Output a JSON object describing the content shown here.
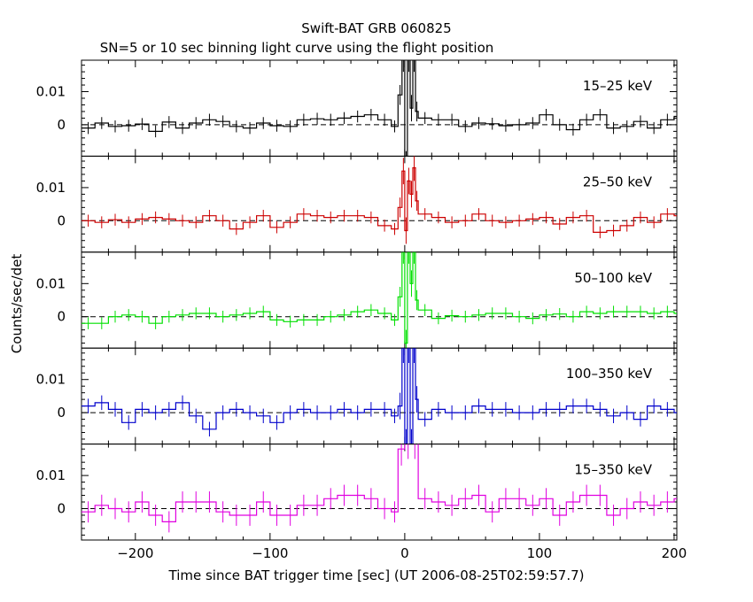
{
  "chart_data": {
    "type": "line",
    "title": "Swift-BAT GRB 060825",
    "subtitle": "SN=5 or 10 sec binning light curve using the flight position",
    "xlabel": "Time since BAT trigger time [sec] (UT 2006-08-25T02:59:57.7)",
    "ylabel": "Counts/sec/det",
    "xlim": [
      -240,
      202
    ],
    "x_ticks": [
      -200,
      -100,
      0,
      100,
      200
    ],
    "x_tick_labels": [
      "−200",
      "−100",
      "0",
      "100",
      "200"
    ],
    "ylim": [
      -0.0095,
      0.0195
    ],
    "y_ticks": [
      0,
      0.01
    ],
    "y_tick_labels": [
      "0",
      "0.01"
    ],
    "reference_line": 0,
    "panels": [
      {
        "name": "15–25 keV",
        "color": "#000000",
        "bins_x": [
          -240,
          -230,
          -220,
          -210,
          -200,
          -190,
          -180,
          -170,
          -160,
          -150,
          -140,
          -130,
          -120,
          -110,
          -100,
          -90,
          -80,
          -70,
          -60,
          -50,
          -40,
          -30,
          -20,
          -10,
          -5,
          -2,
          0,
          2,
          4,
          6,
          8,
          10,
          20,
          30,
          40,
          50,
          60,
          70,
          80,
          90,
          100,
          110,
          120,
          130,
          140,
          150,
          160,
          170,
          180,
          190,
          200
        ],
        "values": [
          -0.001,
          0.0005,
          -0.0005,
          -0.0003,
          0.0002,
          -0.002,
          0.0008,
          -0.001,
          0.0005,
          0.0015,
          0.001,
          -0.0005,
          -0.001,
          0.0005,
          -0.0003,
          -0.0005,
          0.0015,
          0.0018,
          0.0015,
          0.002,
          0.0025,
          0.003,
          0.0015,
          -0.0005,
          0.009,
          0.02,
          -0.012,
          0.02,
          0.005,
          0.02,
          0.004,
          0.002,
          0.0015,
          0.0015,
          -0.0005,
          0.0005,
          0.0003,
          -0.0003,
          0,
          0.0005,
          0.003,
          0,
          -0.0015,
          0.0015,
          0.003,
          -0.001,
          -0.0005,
          0.001,
          -0.001,
          0.0015,
          0.0025
        ],
        "errors": [
          0.0018,
          0.0018,
          0.0018,
          0.0018,
          0.0018,
          0.0018,
          0.0018,
          0.0018,
          0.0018,
          0.0018,
          0.0018,
          0.0018,
          0.0018,
          0.0018,
          0.0018,
          0.0018,
          0.0018,
          0.0018,
          0.0018,
          0.0018,
          0.0018,
          0.0018,
          0.0018,
          0.0018,
          0.003,
          0.004,
          0.004,
          0.004,
          0.004,
          0.004,
          0.003,
          0.0018,
          0.0018,
          0.0018,
          0.0018,
          0.0018,
          0.0018,
          0.0018,
          0.0018,
          0.0018,
          0.0018,
          0.0018,
          0.0018,
          0.0018,
          0.0018,
          0.0018,
          0.0018,
          0.0018,
          0.0018,
          0.0018,
          0.0018
        ]
      },
      {
        "name": "25–50 keV",
        "color": "#cc0000",
        "bins_x": [
          -240,
          -230,
          -220,
          -210,
          -200,
          -190,
          -180,
          -170,
          -160,
          -150,
          -140,
          -130,
          -120,
          -110,
          -100,
          -90,
          -80,
          -70,
          -60,
          -50,
          -40,
          -30,
          -20,
          -10,
          -5,
          -2,
          0,
          2,
          4,
          6,
          8,
          10,
          20,
          30,
          40,
          50,
          60,
          70,
          80,
          90,
          100,
          110,
          120,
          130,
          140,
          150,
          160,
          170,
          180,
          190,
          200
        ],
        "values": [
          0,
          -0.0005,
          0.0003,
          -0.0005,
          0.0005,
          0.001,
          0.0005,
          0,
          -0.0005,
          0.0015,
          0,
          -0.0025,
          -0.0005,
          0.0015,
          -0.002,
          -0.0005,
          0.002,
          0.0015,
          0.001,
          0.0015,
          0.0015,
          0.001,
          -0.0015,
          -0.0025,
          0.004,
          0.015,
          -0.003,
          0.012,
          0.008,
          0.016,
          0.006,
          0.002,
          0.001,
          -0.0005,
          0,
          0.002,
          0,
          -0.0005,
          0,
          0.0005,
          0.001,
          -0.001,
          0.001,
          0.0015,
          -0.0035,
          -0.003,
          -0.0015,
          0.001,
          -0.0005,
          0.002,
          0.0015
        ],
        "errors": [
          0.0018,
          0.0018,
          0.0018,
          0.0018,
          0.0018,
          0.0018,
          0.0018,
          0.0018,
          0.0018,
          0.0018,
          0.0018,
          0.0018,
          0.0018,
          0.0018,
          0.0018,
          0.0018,
          0.0018,
          0.0018,
          0.0018,
          0.0018,
          0.0018,
          0.0018,
          0.0018,
          0.0018,
          0.003,
          0.004,
          0.004,
          0.004,
          0.004,
          0.004,
          0.003,
          0.0018,
          0.0018,
          0.0018,
          0.0018,
          0.0018,
          0.0018,
          0.0018,
          0.0018,
          0.0018,
          0.0018,
          0.0018,
          0.0018,
          0.0018,
          0.0018,
          0.0018,
          0.0018,
          0.0018,
          0.0018,
          0.0018,
          0.0018
        ]
      },
      {
        "name": "50–100 keV",
        "color": "#00e000",
        "bins_x": [
          -240,
          -230,
          -220,
          -210,
          -200,
          -190,
          -180,
          -170,
          -160,
          -150,
          -140,
          -130,
          -120,
          -110,
          -100,
          -90,
          -80,
          -70,
          -60,
          -50,
          -40,
          -30,
          -20,
          -10,
          -5,
          -2,
          0,
          2,
          4,
          6,
          8,
          10,
          20,
          30,
          40,
          50,
          60,
          70,
          80,
          90,
          100,
          110,
          120,
          130,
          140,
          150,
          160,
          170,
          180,
          190,
          200
        ],
        "values": [
          -0.002,
          -0.002,
          0,
          0.0005,
          0,
          -0.002,
          0,
          0.0005,
          0.001,
          0.001,
          0,
          0.0005,
          0.001,
          0.0015,
          -0.001,
          -0.0015,
          -0.001,
          -0.001,
          0,
          0.0005,
          0.0015,
          0.002,
          0.001,
          -0.001,
          0.006,
          0.02,
          -0.008,
          0.02,
          0.01,
          0.02,
          0.005,
          0.002,
          -0.0005,
          0.0003,
          0,
          0.0005,
          0.001,
          0.001,
          0,
          -0.0005,
          0.0005,
          0.0008,
          0,
          0.0015,
          0.001,
          0.0015,
          0.0015,
          0.0015,
          0.001,
          0.0015,
          0.001
        ],
        "errors": [
          0.0018,
          0.0018,
          0.0018,
          0.0018,
          0.0018,
          0.0018,
          0.0018,
          0.0018,
          0.0018,
          0.0018,
          0.0018,
          0.0018,
          0.0018,
          0.0018,
          0.0018,
          0.0018,
          0.0018,
          0.0018,
          0.0018,
          0.0018,
          0.0018,
          0.0018,
          0.0018,
          0.0018,
          0.003,
          0.004,
          0.004,
          0.004,
          0.004,
          0.004,
          0.003,
          0.0018,
          0.0018,
          0.0018,
          0.0018,
          0.0018,
          0.0018,
          0.0018,
          0.0018,
          0.0018,
          0.0018,
          0.0018,
          0.0018,
          0.0018,
          0.0018,
          0.0018,
          0.0018,
          0.0018,
          0.0018,
          0.0018,
          0.0018
        ]
      },
      {
        "name": "100–350 keV",
        "color": "#0000cc",
        "bins_x": [
          -240,
          -230,
          -220,
          -210,
          -200,
          -190,
          -180,
          -170,
          -160,
          -150,
          -140,
          -130,
          -120,
          -110,
          -100,
          -90,
          -80,
          -70,
          -60,
          -50,
          -40,
          -30,
          -20,
          -10,
          -5,
          -2,
          0,
          2,
          4,
          6,
          8,
          10,
          20,
          30,
          40,
          50,
          60,
          70,
          80,
          90,
          100,
          110,
          120,
          130,
          140,
          150,
          160,
          170,
          180,
          190,
          200
        ],
        "values": [
          0.002,
          0.003,
          0.001,
          -0.003,
          0.001,
          0,
          0.001,
          0.003,
          -0.001,
          -0.005,
          0,
          0.001,
          0,
          -0.001,
          -0.003,
          0,
          0.001,
          0,
          0,
          0.001,
          0,
          0.001,
          0.001,
          -0.001,
          0.002,
          0.02,
          -0.01,
          0.02,
          -0.01,
          0.02,
          0.004,
          -0.002,
          0.001,
          0,
          0,
          0.002,
          0.001,
          0.001,
          0,
          0,
          0.001,
          0.001,
          0.002,
          0.002,
          0.001,
          -0.001,
          0,
          -0.002,
          0.002,
          0.001,
          0
        ],
        "errors": [
          0.0022,
          0.0022,
          0.0022,
          0.0022,
          0.0022,
          0.0022,
          0.0022,
          0.0022,
          0.0022,
          0.0022,
          0.0022,
          0.0022,
          0.0022,
          0.0022,
          0.0022,
          0.0022,
          0.0022,
          0.0022,
          0.0022,
          0.0022,
          0.0022,
          0.0022,
          0.0022,
          0.0022,
          0.004,
          0.005,
          0.005,
          0.005,
          0.005,
          0.005,
          0.004,
          0.0022,
          0.0022,
          0.0022,
          0.0022,
          0.0022,
          0.0022,
          0.0022,
          0.0022,
          0.0022,
          0.0022,
          0.0022,
          0.0022,
          0.0022,
          0.0022,
          0.0022,
          0.0022,
          0.0022,
          0.0022,
          0.0022,
          0.0022
        ]
      },
      {
        "name": "15–350 keV",
        "color": "#e000e0",
        "bins_x": [
          -240,
          -230,
          -220,
          -210,
          -200,
          -190,
          -180,
          -170,
          -160,
          -150,
          -140,
          -130,
          -120,
          -110,
          -100,
          -90,
          -80,
          -70,
          -60,
          -50,
          -40,
          -30,
          -20,
          -10,
          -5,
          0,
          5,
          10,
          20,
          30,
          40,
          50,
          60,
          70,
          80,
          90,
          100,
          110,
          120,
          130,
          140,
          150,
          160,
          170,
          180,
          190,
          200
        ],
        "values": [
          -0.001,
          0.001,
          0,
          -0.001,
          0.002,
          -0.002,
          -0.004,
          0.002,
          0.002,
          0.002,
          -0.001,
          -0.002,
          -0.002,
          0.002,
          -0.002,
          -0.002,
          0.001,
          0.001,
          0.003,
          0.004,
          0.004,
          0.003,
          0,
          -0.001,
          0.018,
          0.02,
          0.02,
          0.003,
          0.002,
          0.001,
          0.003,
          0.004,
          -0.001,
          0.003,
          0.003,
          0.001,
          0.003,
          -0.002,
          0.002,
          0.004,
          0.004,
          -0.002,
          0,
          0.002,
          0.001,
          0.002,
          0.003
        ],
        "errors": [
          0.0032,
          0.0032,
          0.0032,
          0.0032,
          0.0032,
          0.0032,
          0.0032,
          0.0032,
          0.0032,
          0.0032,
          0.0032,
          0.0032,
          0.0032,
          0.0032,
          0.0032,
          0.0032,
          0.0032,
          0.0032,
          0.0032,
          0.0032,
          0.0032,
          0.0032,
          0.0032,
          0.0032,
          0.005,
          0.005,
          0.005,
          0.0032,
          0.0032,
          0.0032,
          0.0032,
          0.0032,
          0.0032,
          0.0032,
          0.0032,
          0.0032,
          0.0032,
          0.0032,
          0.0032,
          0.0032,
          0.0032,
          0.0032,
          0.0032,
          0.0032,
          0.0032,
          0.0032,
          0.0032
        ]
      }
    ]
  }
}
